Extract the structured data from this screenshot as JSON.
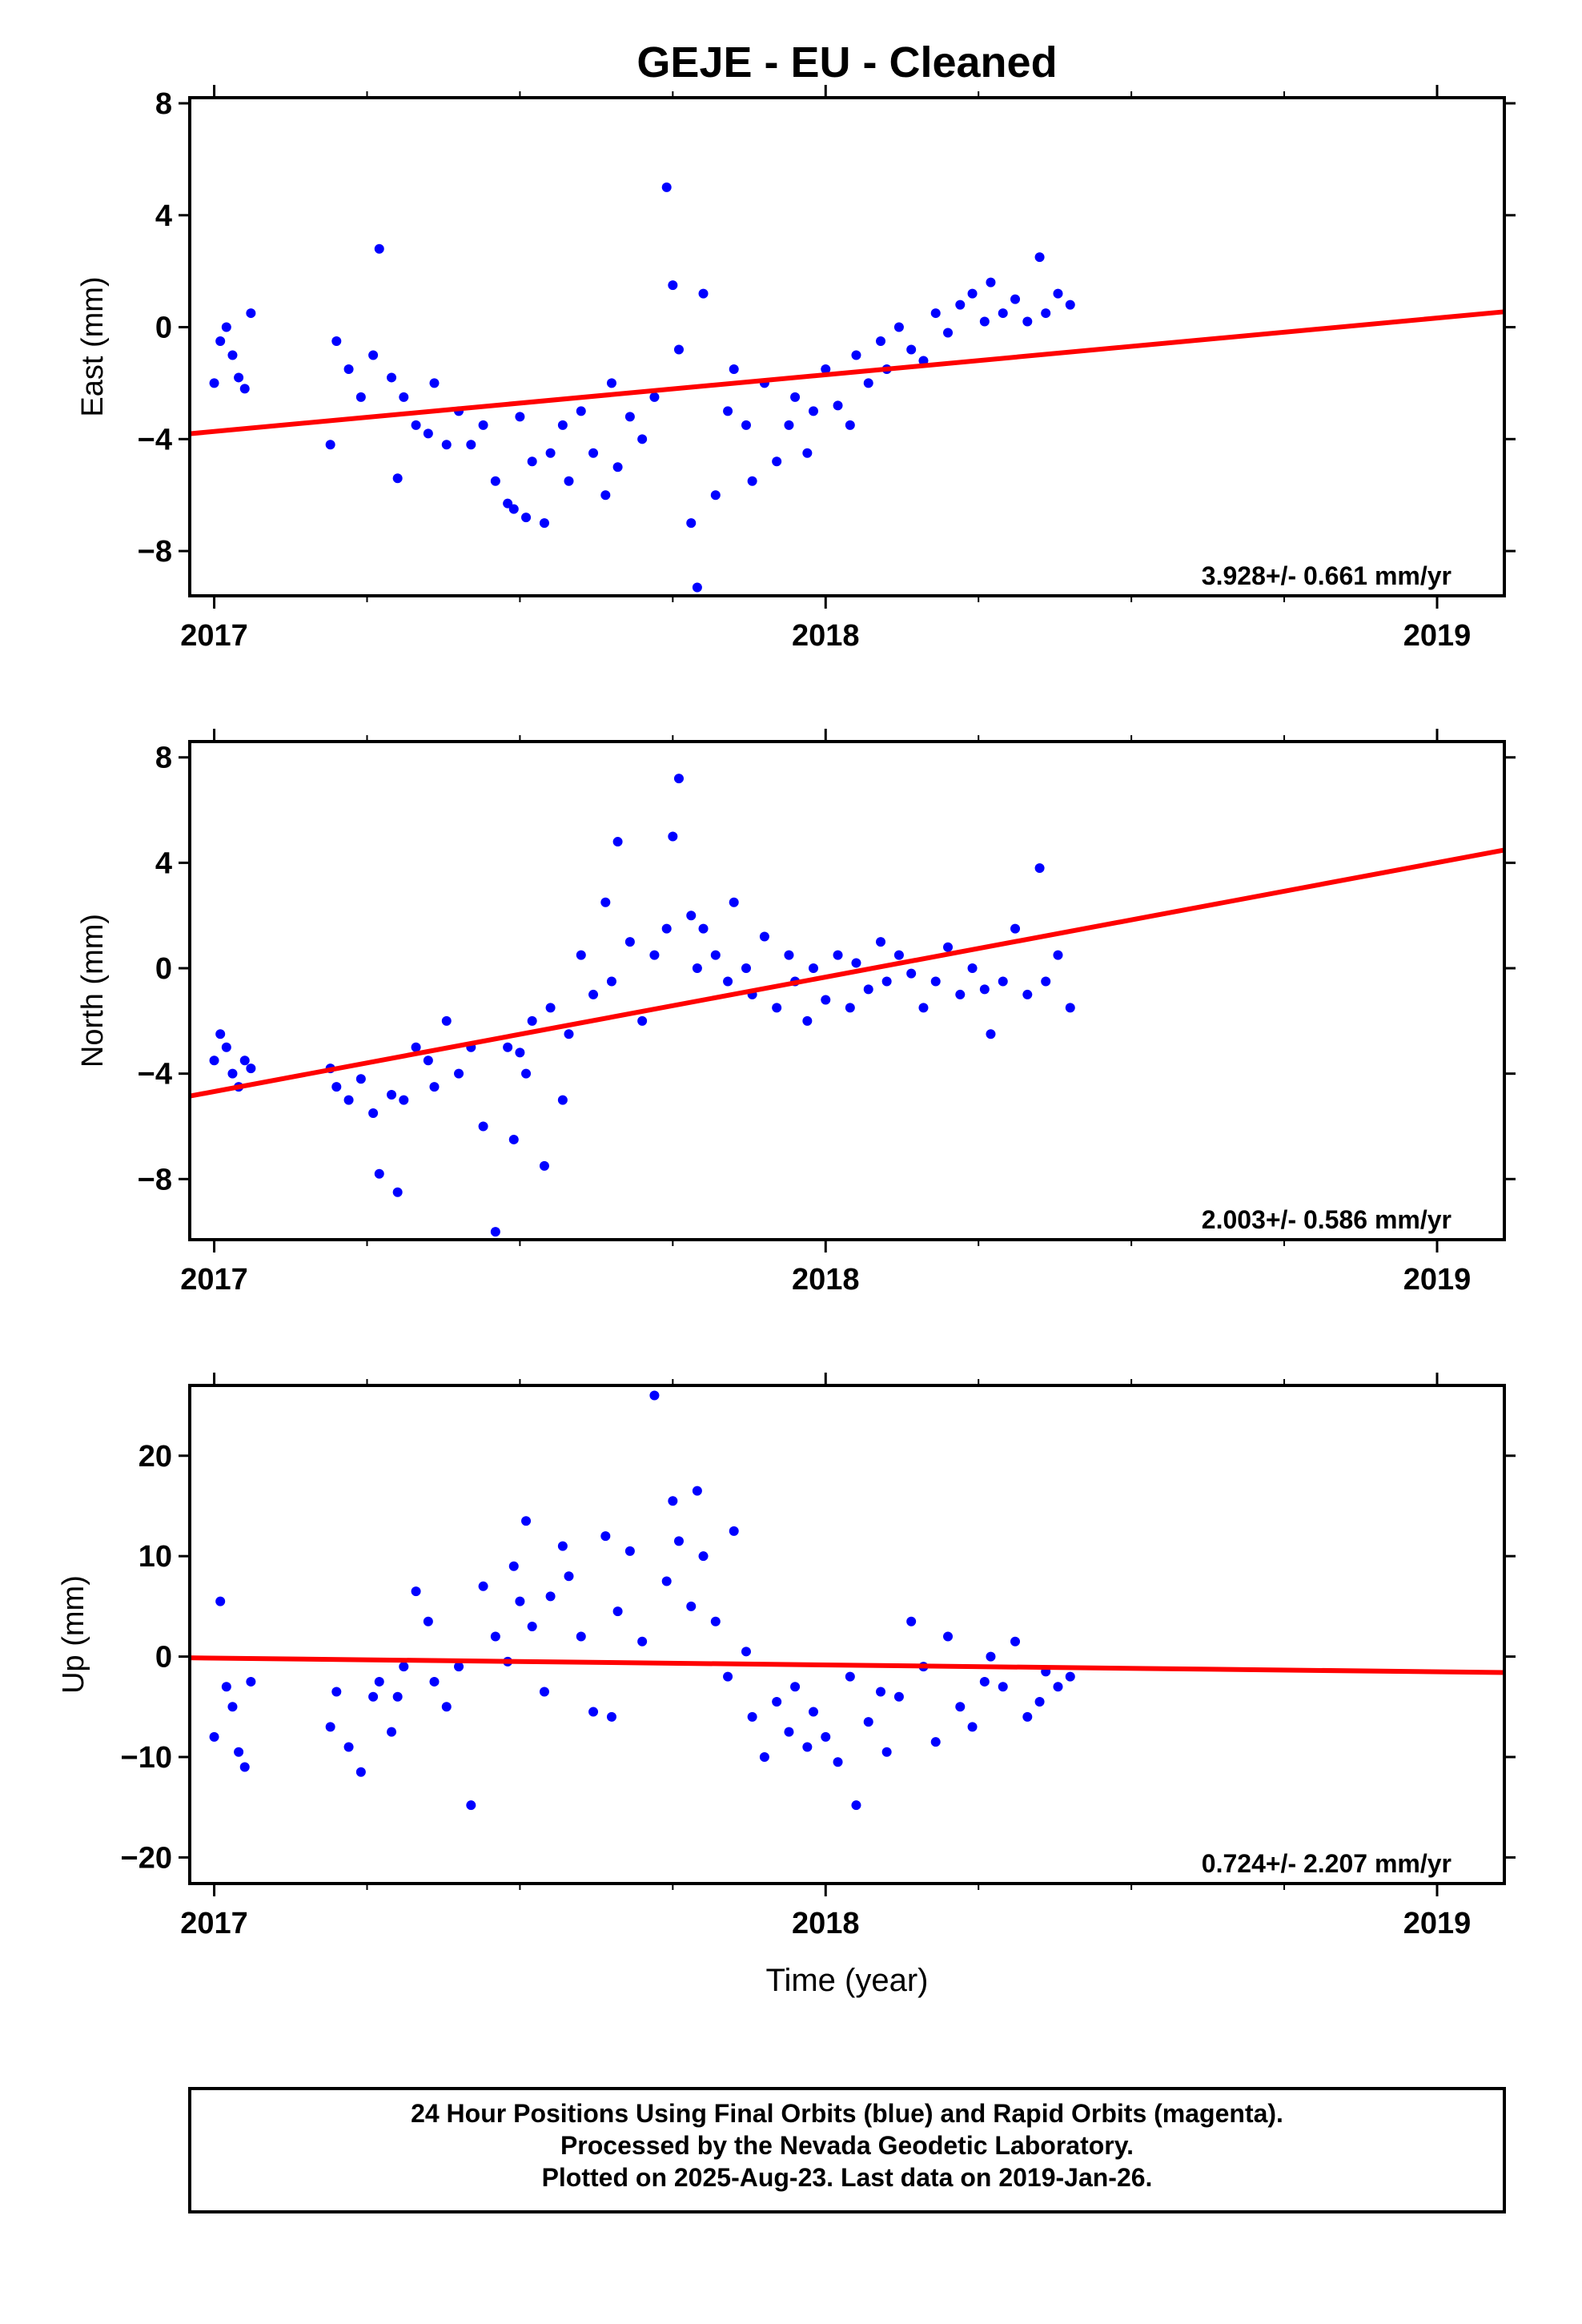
{
  "title": "GEJE  - EU - Cleaned",
  "x_axis_label": "Time (year)",
  "footer": {
    "line1": "24 Hour Positions Using Final Orbits (blue) and Rapid Orbits (magenta).",
    "line2": "Processed by the Nevada Geodetic Laboratory.",
    "line3": "Plotted on 2025-Aug-23. Last data on 2019-Jan-26."
  },
  "colors": {
    "points": "#0000ff",
    "fit": "#ff0000",
    "axes": "#000000"
  },
  "chart_data": [
    {
      "type": "scatter",
      "panel": "east",
      "ylabel": "East (mm)",
      "xlim": [
        2016.96,
        2019.11
      ],
      "ylim": [
        -9.6,
        8.2
      ],
      "x_ticks": [
        2017,
        2018,
        2019
      ],
      "x_tick_labels": [
        "2017",
        "2018",
        "2019"
      ],
      "y_ticks": [
        -8,
        -4,
        0,
        4,
        8
      ],
      "y_tick_labels": [
        "−8",
        "−4",
        "0",
        "4",
        "8"
      ],
      "rate_label": "3.928+/- 0.661 mm/yr",
      "points": [
        [
          2017.0,
          -2.0
        ],
        [
          2017.01,
          -0.5
        ],
        [
          2017.02,
          0.0
        ],
        [
          2017.03,
          -1.0
        ],
        [
          2017.04,
          -1.8
        ],
        [
          2017.05,
          -2.2
        ],
        [
          2017.06,
          0.5
        ],
        [
          2017.19,
          -4.2
        ],
        [
          2017.2,
          -0.5
        ],
        [
          2017.22,
          -1.5
        ],
        [
          2017.24,
          -2.5
        ],
        [
          2017.26,
          -1.0
        ],
        [
          2017.27,
          2.8
        ],
        [
          2017.29,
          -1.8
        ],
        [
          2017.3,
          -5.4
        ],
        [
          2017.31,
          -2.5
        ],
        [
          2017.33,
          -3.5
        ],
        [
          2017.35,
          -3.8
        ],
        [
          2017.36,
          -2.0
        ],
        [
          2017.38,
          -4.2
        ],
        [
          2017.4,
          -3.0
        ],
        [
          2017.42,
          -4.2
        ],
        [
          2017.44,
          -3.5
        ],
        [
          2017.46,
          -5.5
        ],
        [
          2017.48,
          -6.3
        ],
        [
          2017.49,
          -6.5
        ],
        [
          2017.5,
          -3.2
        ],
        [
          2017.51,
          -6.8
        ],
        [
          2017.52,
          -4.8
        ],
        [
          2017.54,
          -7.0
        ],
        [
          2017.55,
          -4.5
        ],
        [
          2017.57,
          -3.5
        ],
        [
          2017.58,
          -5.5
        ],
        [
          2017.6,
          -3.0
        ],
        [
          2017.62,
          -4.5
        ],
        [
          2017.64,
          -6.0
        ],
        [
          2017.65,
          -2.0
        ],
        [
          2017.66,
          -5.0
        ],
        [
          2017.68,
          -3.2
        ],
        [
          2017.7,
          -4.0
        ],
        [
          2017.72,
          -2.5
        ],
        [
          2017.74,
          5.0
        ],
        [
          2017.75,
          1.5
        ],
        [
          2017.76,
          -0.8
        ],
        [
          2017.78,
          -7.0
        ],
        [
          2017.79,
          -9.3
        ],
        [
          2017.8,
          1.2
        ],
        [
          2017.82,
          -6.0
        ],
        [
          2017.84,
          -3.0
        ],
        [
          2017.85,
          -1.5
        ],
        [
          2017.87,
          -3.5
        ],
        [
          2017.88,
          -5.5
        ],
        [
          2017.9,
          -2.0
        ],
        [
          2017.92,
          -4.8
        ],
        [
          2017.94,
          -3.5
        ],
        [
          2017.95,
          -2.5
        ],
        [
          2017.97,
          -4.5
        ],
        [
          2017.98,
          -3.0
        ],
        [
          2018.0,
          -1.5
        ],
        [
          2018.02,
          -2.8
        ],
        [
          2018.04,
          -3.5
        ],
        [
          2018.05,
          -1.0
        ],
        [
          2018.07,
          -2.0
        ],
        [
          2018.09,
          -0.5
        ],
        [
          2018.1,
          -1.5
        ],
        [
          2018.12,
          0.0
        ],
        [
          2018.14,
          -0.8
        ],
        [
          2018.16,
          -1.2
        ],
        [
          2018.18,
          0.5
        ],
        [
          2018.2,
          -0.2
        ],
        [
          2018.22,
          0.8
        ],
        [
          2018.24,
          1.2
        ],
        [
          2018.26,
          0.2
        ],
        [
          2018.27,
          1.6
        ],
        [
          2018.29,
          0.5
        ],
        [
          2018.31,
          1.0
        ],
        [
          2018.33,
          0.2
        ],
        [
          2018.35,
          2.5
        ],
        [
          2018.36,
          0.5
        ],
        [
          2018.38,
          1.2
        ],
        [
          2018.4,
          0.8
        ]
      ]
    },
    {
      "type": "scatter",
      "panel": "north",
      "ylabel": "North (mm)",
      "xlim": [
        2016.96,
        2019.11
      ],
      "ylim": [
        -10.3,
        8.6
      ],
      "x_ticks": [
        2017,
        2018,
        2019
      ],
      "x_tick_labels": [
        "2017",
        "2018",
        "2019"
      ],
      "y_ticks": [
        -8,
        -4,
        0,
        4,
        8
      ],
      "y_tick_labels": [
        "−8",
        "−4",
        "0",
        "4",
        "8"
      ],
      "rate_label": "2.003+/- 0.586 mm/yr",
      "points": [
        [
          2017.0,
          -3.5
        ],
        [
          2017.01,
          -2.5
        ],
        [
          2017.02,
          -3.0
        ],
        [
          2017.03,
          -4.0
        ],
        [
          2017.04,
          -4.5
        ],
        [
          2017.05,
          -3.5
        ],
        [
          2017.06,
          -3.8
        ],
        [
          2017.19,
          -3.8
        ],
        [
          2017.2,
          -4.5
        ],
        [
          2017.22,
          -5.0
        ],
        [
          2017.24,
          -4.2
        ],
        [
          2017.26,
          -5.5
        ],
        [
          2017.27,
          -7.8
        ],
        [
          2017.29,
          -4.8
        ],
        [
          2017.3,
          -8.5
        ],
        [
          2017.31,
          -5.0
        ],
        [
          2017.33,
          -3.0
        ],
        [
          2017.35,
          -3.5
        ],
        [
          2017.36,
          -4.5
        ],
        [
          2017.38,
          -2.0
        ],
        [
          2017.4,
          -4.0
        ],
        [
          2017.42,
          -3.0
        ],
        [
          2017.44,
          -6.0
        ],
        [
          2017.46,
          -10.0
        ],
        [
          2017.48,
          -3.0
        ],
        [
          2017.49,
          -6.5
        ],
        [
          2017.5,
          -3.2
        ],
        [
          2017.51,
          -4.0
        ],
        [
          2017.52,
          -2.0
        ],
        [
          2017.54,
          -7.5
        ],
        [
          2017.55,
          -1.5
        ],
        [
          2017.57,
          -5.0
        ],
        [
          2017.58,
          -2.5
        ],
        [
          2017.6,
          0.5
        ],
        [
          2017.62,
          -1.0
        ],
        [
          2017.64,
          2.5
        ],
        [
          2017.65,
          -0.5
        ],
        [
          2017.66,
          4.8
        ],
        [
          2017.68,
          1.0
        ],
        [
          2017.7,
          -2.0
        ],
        [
          2017.72,
          0.5
        ],
        [
          2017.74,
          1.5
        ],
        [
          2017.75,
          5.0
        ],
        [
          2017.76,
          7.2
        ],
        [
          2017.78,
          2.0
        ],
        [
          2017.79,
          0.0
        ],
        [
          2017.8,
          1.5
        ],
        [
          2017.82,
          0.5
        ],
        [
          2017.84,
          -0.5
        ],
        [
          2017.85,
          2.5
        ],
        [
          2017.87,
          0.0
        ],
        [
          2017.88,
          -1.0
        ],
        [
          2017.9,
          1.2
        ],
        [
          2017.92,
          -1.5
        ],
        [
          2017.94,
          0.5
        ],
        [
          2017.95,
          -0.5
        ],
        [
          2017.97,
          -2.0
        ],
        [
          2017.98,
          0.0
        ],
        [
          2018.0,
          -1.2
        ],
        [
          2018.02,
          0.5
        ],
        [
          2018.04,
          -1.5
        ],
        [
          2018.05,
          0.2
        ],
        [
          2018.07,
          -0.8
        ],
        [
          2018.09,
          1.0
        ],
        [
          2018.1,
          -0.5
        ],
        [
          2018.12,
          0.5
        ],
        [
          2018.14,
          -0.2
        ],
        [
          2018.16,
          -1.5
        ],
        [
          2018.18,
          -0.5
        ],
        [
          2018.2,
          0.8
        ],
        [
          2018.22,
          -1.0
        ],
        [
          2018.24,
          0.0
        ],
        [
          2018.26,
          -0.8
        ],
        [
          2018.27,
          -2.5
        ],
        [
          2018.29,
          -0.5
        ],
        [
          2018.31,
          1.5
        ],
        [
          2018.33,
          -1.0
        ],
        [
          2018.35,
          3.8
        ],
        [
          2018.36,
          -0.5
        ],
        [
          2018.38,
          0.5
        ],
        [
          2018.4,
          -1.5
        ]
      ]
    },
    {
      "type": "scatter",
      "panel": "up",
      "ylabel": "Up (mm)",
      "xlim": [
        2016.96,
        2019.11
      ],
      "ylim": [
        -22.6,
        27.0
      ],
      "x_ticks": [
        2017,
        2018,
        2019
      ],
      "x_tick_labels": [
        "2017",
        "2018",
        "2019"
      ],
      "y_ticks": [
        -20,
        -10,
        0,
        10,
        20
      ],
      "y_tick_labels": [
        "−20",
        "−10",
        "0",
        "10",
        "20"
      ],
      "rate_label": "0.724+/- 2.207 mm/yr",
      "points": [
        [
          2017.0,
          -8.0
        ],
        [
          2017.01,
          5.5
        ],
        [
          2017.02,
          -3.0
        ],
        [
          2017.03,
          -5.0
        ],
        [
          2017.04,
          -9.5
        ],
        [
          2017.05,
          -11.0
        ],
        [
          2017.06,
          -2.5
        ],
        [
          2017.19,
          -7.0
        ],
        [
          2017.2,
          -3.5
        ],
        [
          2017.22,
          -9.0
        ],
        [
          2017.24,
          -11.5
        ],
        [
          2017.26,
          -4.0
        ],
        [
          2017.27,
          -2.5
        ],
        [
          2017.29,
          -7.5
        ],
        [
          2017.3,
          -4.0
        ],
        [
          2017.31,
          -1.0
        ],
        [
          2017.33,
          6.5
        ],
        [
          2017.35,
          3.5
        ],
        [
          2017.36,
          -2.5
        ],
        [
          2017.38,
          -5.0
        ],
        [
          2017.4,
          -1.0
        ],
        [
          2017.42,
          -14.8
        ],
        [
          2017.44,
          7.0
        ],
        [
          2017.46,
          2.0
        ],
        [
          2017.48,
          -0.5
        ],
        [
          2017.49,
          9.0
        ],
        [
          2017.5,
          5.5
        ],
        [
          2017.51,
          13.5
        ],
        [
          2017.52,
          3.0
        ],
        [
          2017.54,
          -3.5
        ],
        [
          2017.55,
          6.0
        ],
        [
          2017.57,
          11.0
        ],
        [
          2017.58,
          8.0
        ],
        [
          2017.6,
          2.0
        ],
        [
          2017.62,
          -5.5
        ],
        [
          2017.64,
          12.0
        ],
        [
          2017.65,
          -6.0
        ],
        [
          2017.66,
          4.5
        ],
        [
          2017.68,
          10.5
        ],
        [
          2017.7,
          1.5
        ],
        [
          2017.72,
          26.0
        ],
        [
          2017.74,
          7.5
        ],
        [
          2017.75,
          15.5
        ],
        [
          2017.76,
          11.5
        ],
        [
          2017.78,
          5.0
        ],
        [
          2017.79,
          16.5
        ],
        [
          2017.8,
          10.0
        ],
        [
          2017.82,
          3.5
        ],
        [
          2017.84,
          -2.0
        ],
        [
          2017.85,
          12.5
        ],
        [
          2017.87,
          0.5
        ],
        [
          2017.88,
          -6.0
        ],
        [
          2017.9,
          -10.0
        ],
        [
          2017.92,
          -4.5
        ],
        [
          2017.94,
          -7.5
        ],
        [
          2017.95,
          -3.0
        ],
        [
          2017.97,
          -9.0
        ],
        [
          2017.98,
          -5.5
        ],
        [
          2018.0,
          -8.0
        ],
        [
          2018.02,
          -10.5
        ],
        [
          2018.04,
          -2.0
        ],
        [
          2018.05,
          -14.8
        ],
        [
          2018.07,
          -6.5
        ],
        [
          2018.09,
          -3.5
        ],
        [
          2018.1,
          -9.5
        ],
        [
          2018.12,
          -4.0
        ],
        [
          2018.14,
          3.5
        ],
        [
          2018.16,
          -1.0
        ],
        [
          2018.18,
          -8.5
        ],
        [
          2018.2,
          2.0
        ],
        [
          2018.22,
          -5.0
        ],
        [
          2018.24,
          -7.0
        ],
        [
          2018.26,
          -2.5
        ],
        [
          2018.27,
          0.0
        ],
        [
          2018.29,
          -3.0
        ],
        [
          2018.31,
          1.5
        ],
        [
          2018.33,
          -6.0
        ],
        [
          2018.35,
          -4.5
        ],
        [
          2018.36,
          -1.5
        ],
        [
          2018.38,
          -3.0
        ],
        [
          2018.4,
          -2.0
        ]
      ]
    }
  ]
}
